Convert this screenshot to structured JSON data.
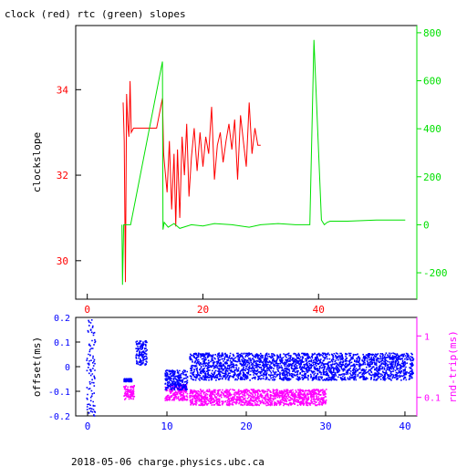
{
  "footer": "2018-05-06 charge.physics.ubc.ca",
  "colors": {
    "red": "#ff0000",
    "green": "#00e000",
    "blue": "#0000ff",
    "magenta": "#ff00ff",
    "axis": "#000000"
  },
  "chart_data": [
    {
      "type": "line",
      "title": "clock (red) rtc (green) slopes",
      "xlabel": "",
      "ylabel": "clockslope",
      "xlim": [
        -2,
        57
      ],
      "ylim": [
        29.1,
        35.5
      ],
      "y2lim": [
        -310,
        830
      ],
      "xticks": [
        0,
        20,
        40
      ],
      "yticks": [
        30,
        32,
        34
      ],
      "y2ticks": [
        -200,
        0,
        200,
        400,
        600,
        800
      ],
      "grid": false,
      "series": [
        {
          "axis": "left",
          "color": "red",
          "x": [
            6.2,
            6.4,
            6.6,
            6.8,
            7.0,
            7.2,
            7.4,
            7.6,
            8.0,
            10.0,
            12.0,
            13.0,
            13.2,
            13.4,
            13.8,
            14.2,
            14.6,
            15.0,
            15.3,
            15.6,
            16.0,
            16.4,
            16.8,
            17.2,
            17.6,
            18.0,
            18.5,
            19.0,
            19.5,
            20.0,
            20.5,
            21.0,
            21.5,
            22.0,
            22.5,
            23.0,
            23.5,
            24.0,
            24.5,
            25.0,
            25.5,
            26.0,
            26.5,
            27.0,
            27.5,
            28.0,
            28.5,
            29.0,
            29.5,
            30.0
          ],
          "y": [
            33.7,
            32.8,
            29.5,
            33.9,
            33.2,
            32.9,
            34.2,
            33.0,
            33.1,
            33.1,
            33.1,
            33.8,
            32.5,
            32.2,
            31.6,
            32.8,
            31.2,
            32.5,
            30.8,
            32.6,
            31.0,
            32.9,
            32.0,
            33.2,
            31.5,
            32.4,
            33.1,
            32.1,
            33.0,
            32.2,
            32.9,
            32.5,
            33.6,
            31.9,
            32.7,
            33.0,
            32.3,
            32.8,
            33.2,
            32.6,
            33.3,
            31.9,
            33.4,
            32.8,
            32.2,
            33.7,
            32.5,
            33.1,
            32.7,
            32.7
          ]
        },
        {
          "axis": "right",
          "color": "green",
          "x": [
            6.0,
            6.1,
            6.3,
            7.5,
            13.0,
            13.1,
            13.3,
            14.0,
            15.0,
            16.0,
            18.0,
            20.0,
            22.0,
            25.0,
            28.0,
            30.0,
            33.0,
            36.0,
            38.5,
            39.2,
            40.5,
            41.0,
            41.5,
            42.0,
            45.0,
            50.0,
            55.0
          ],
          "y": [
            0,
            -250,
            0,
            0,
            680,
            -20,
            10,
            -10,
            5,
            -15,
            0,
            -5,
            5,
            0,
            -10,
            0,
            5,
            0,
            0,
            770,
            20,
            0,
            10,
            15,
            15,
            20,
            20
          ]
        }
      ]
    },
    {
      "type": "scatter",
      "title": "",
      "xlabel": "",
      "ylabel": "offset(ms)",
      "y2label": "rnd-trip(ms)",
      "xlim": [
        -1.5,
        41.5
      ],
      "ylim": [
        -0.2,
        0.2
      ],
      "y2scale": "log",
      "y2lim": [
        0.05,
        2.0
      ],
      "xticks": [
        0,
        10,
        20,
        30,
        40
      ],
      "yticks": [
        -0.2,
        -0.1,
        0,
        0.1,
        0.2
      ],
      "y2ticks": [
        0.1,
        1
      ],
      "series": [
        {
          "name": "offset",
          "color": "blue",
          "segments": [
            {
              "x0": -0.2,
              "x1": 0.9,
              "center": 0.0,
              "spread": 0.2
            },
            {
              "x0": 4.5,
              "x1": 5.5,
              "center": -0.055,
              "spread": 0.006
            },
            {
              "x0": 6.0,
              "x1": 7.4,
              "center": 0.055,
              "spread": 0.05
            },
            {
              "x0": 9.7,
              "x1": 12.5,
              "center": -0.055,
              "spread": 0.04
            },
            {
              "x0": 12.8,
              "x1": 41.0,
              "center": 0.0,
              "spread": 0.055
            }
          ]
        },
        {
          "name": "rnd-trip",
          "color": "magenta",
          "segments": [
            {
              "x0": 4.5,
              "x1": 5.8,
              "center": 0.12,
              "spread": 1.3
            },
            {
              "x0": 9.7,
              "x1": 12.5,
              "center": 0.12,
              "spread": 1.35
            },
            {
              "x0": 12.8,
              "x1": 30.0,
              "center": 0.1,
              "spread": 1.35
            }
          ]
        }
      ]
    }
  ]
}
